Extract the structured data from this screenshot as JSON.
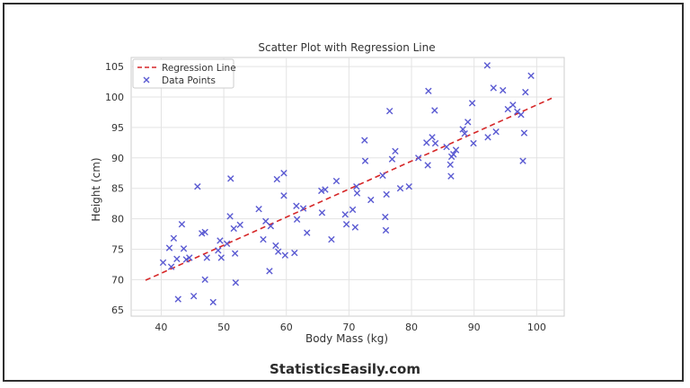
{
  "chart_data": {
    "type": "scatter",
    "title": "Scatter Plot with Regression Line",
    "xlabel": "Body Mass (kg)",
    "ylabel": "Height (cm)",
    "xlim": [
      35.2,
      104.4
    ],
    "ylim": [
      64.0,
      106.5
    ],
    "xticks": [
      40,
      50,
      60,
      70,
      80,
      90,
      100
    ],
    "yticks": [
      65,
      70,
      75,
      80,
      85,
      90,
      95,
      100,
      105
    ],
    "grid": true,
    "legend_position": "top-left",
    "legend": [
      "Regression Line",
      "Data Points"
    ],
    "series": [
      {
        "name": "Regression Line",
        "kind": "line",
        "style": "dashed",
        "color": "#d62728",
        "x": [
          37.5,
          102.4
        ],
        "y": [
          69.9,
          99.8
        ]
      },
      {
        "name": "Data Points",
        "kind": "scatter",
        "marker": "x",
        "color": "#5a5ad2",
        "points": [
          [
            40.3,
            72.8
          ],
          [
            41.3,
            75.2
          ],
          [
            41.6,
            72.1
          ],
          [
            42.0,
            76.8
          ],
          [
            42.5,
            73.4
          ],
          [
            42.7,
            66.8
          ],
          [
            43.3,
            79.1
          ],
          [
            43.6,
            75.1
          ],
          [
            44.0,
            73.3
          ],
          [
            44.5,
            73.6
          ],
          [
            45.2,
            67.3
          ],
          [
            45.8,
            85.3
          ],
          [
            46.5,
            77.6
          ],
          [
            47.0,
            77.8
          ],
          [
            47.0,
            70.0
          ],
          [
            47.3,
            73.6
          ],
          [
            48.3,
            66.3
          ],
          [
            49.1,
            74.8
          ],
          [
            49.4,
            76.4
          ],
          [
            49.6,
            73.6
          ],
          [
            50.5,
            75.9
          ],
          [
            51.0,
            80.4
          ],
          [
            51.1,
            86.6
          ],
          [
            51.6,
            78.4
          ],
          [
            51.8,
            74.3
          ],
          [
            51.9,
            69.5
          ],
          [
            52.6,
            79.0
          ],
          [
            55.6,
            81.6
          ],
          [
            56.3,
            76.6
          ],
          [
            56.7,
            79.6
          ],
          [
            57.3,
            71.4
          ],
          [
            57.5,
            78.8
          ],
          [
            58.3,
            75.6
          ],
          [
            58.5,
            86.5
          ],
          [
            58.7,
            74.6
          ],
          [
            59.6,
            87.5
          ],
          [
            59.6,
            83.8
          ],
          [
            59.8,
            74.0
          ],
          [
            61.3,
            74.4
          ],
          [
            61.6,
            82.1
          ],
          [
            61.7,
            79.9
          ],
          [
            62.7,
            81.7
          ],
          [
            63.3,
            77.7
          ],
          [
            65.6,
            84.6
          ],
          [
            65.7,
            81.0
          ],
          [
            66.2,
            84.8
          ],
          [
            67.2,
            76.6
          ],
          [
            68.0,
            86.2
          ],
          [
            69.4,
            80.7
          ],
          [
            69.6,
            79.1
          ],
          [
            70.6,
            81.5
          ],
          [
            71.0,
            78.6
          ],
          [
            71.2,
            85.3
          ],
          [
            71.3,
            84.2
          ],
          [
            72.5,
            92.9
          ],
          [
            72.6,
            89.5
          ],
          [
            73.5,
            83.1
          ],
          [
            75.4,
            87.1
          ],
          [
            75.8,
            80.3
          ],
          [
            75.9,
            78.1
          ],
          [
            76.0,
            84.0
          ],
          [
            76.5,
            97.7
          ],
          [
            76.9,
            89.8
          ],
          [
            77.4,
            91.1
          ],
          [
            78.2,
            85.0
          ],
          [
            79.6,
            85.3
          ],
          [
            81.1,
            90.0
          ],
          [
            82.4,
            92.5
          ],
          [
            82.6,
            88.8
          ],
          [
            82.7,
            101.0
          ],
          [
            83.3,
            93.4
          ],
          [
            83.7,
            97.8
          ],
          [
            83.8,
            92.4
          ],
          [
            85.6,
            91.8
          ],
          [
            86.2,
            88.9
          ],
          [
            86.3,
            87.0
          ],
          [
            86.4,
            90.2
          ],
          [
            86.7,
            90.6
          ],
          [
            87.1,
            91.3
          ],
          [
            88.2,
            94.7
          ],
          [
            88.5,
            94.0
          ],
          [
            89.0,
            95.9
          ],
          [
            89.7,
            99.0
          ],
          [
            89.9,
            92.4
          ],
          [
            92.1,
            105.2
          ],
          [
            92.2,
            93.4
          ],
          [
            93.1,
            101.5
          ],
          [
            93.5,
            94.3
          ],
          [
            94.6,
            101.1
          ],
          [
            95.4,
            98.0
          ],
          [
            96.2,
            98.7
          ],
          [
            96.9,
            97.6
          ],
          [
            97.5,
            97.1
          ],
          [
            97.8,
            89.5
          ],
          [
            98.0,
            94.1
          ],
          [
            98.2,
            100.8
          ],
          [
            99.1,
            103.5
          ]
        ]
      }
    ]
  },
  "footer": {
    "brand": "StatisticsEasily.com"
  }
}
